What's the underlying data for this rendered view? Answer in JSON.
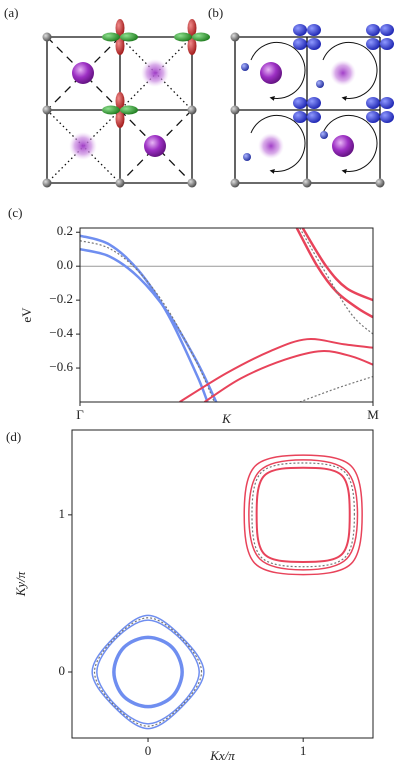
{
  "panels": {
    "a": "(a)",
    "b": "(b)"
  },
  "chart_data": [
    {
      "type": "line",
      "label": "(c)",
      "ylabel": "eV",
      "xlabel": "K",
      "xlim": [
        0,
        2
      ],
      "ylim": [
        -0.8,
        0.225
      ],
      "xticks": [
        {
          "value": 0,
          "label": "Γ"
        },
        {
          "value": 2,
          "label": "M"
        }
      ],
      "yticks": [
        {
          "value": 0.2,
          "label": "0.2"
        },
        {
          "value": 0,
          "label": "0.0"
        },
        {
          "value": -0.2,
          "label": "−0.2"
        },
        {
          "value": -0.4,
          "label": "−0.4"
        },
        {
          "value": -0.6,
          "label": "−0.6"
        }
      ],
      "reference_line": 0,
      "series": [
        {
          "color": "#6f8ef0",
          "line_width": 2.5,
          "x": [
            0,
            0.2,
            0.4,
            0.6,
            0.8,
            0.87
          ],
          "values": [
            0.18,
            0.128,
            -0.026,
            -0.284,
            -0.646,
            -0.8
          ]
        },
        {
          "color": "#6f8ef0",
          "line_width": 2.5,
          "x": [
            0,
            0.2,
            0.4,
            0.6,
            0.8,
            0.93
          ],
          "values": [
            0.1,
            0.058,
            -0.066,
            -0.274,
            -0.566,
            -0.8
          ]
        },
        {
          "color": "#777777",
          "line_width": 1.2,
          "dash": "2 2",
          "x": [
            0,
            0.2,
            0.4,
            0.6,
            0.8,
            0.917
          ],
          "values": [
            0.15,
            0.105,
            -0.031,
            -0.257,
            -0.573,
            -0.8
          ]
        },
        {
          "color": "#e8435a",
          "line_width": 2,
          "x": [
            0.68,
            1.0,
            1.3,
            1.55,
            1.8,
            2.0
          ],
          "values": [
            -0.8,
            -0.63,
            -0.5,
            -0.43,
            -0.46,
            -0.48
          ]
        },
        {
          "color": "#e8435a",
          "line_width": 2,
          "x": [
            0.85,
            1.1,
            1.4,
            1.65,
            1.85,
            2.0
          ],
          "values": [
            -0.8,
            -0.66,
            -0.55,
            -0.5,
            -0.53,
            -0.58
          ]
        },
        {
          "color": "#e8435a",
          "line_width": 2.5,
          "x": [
            1.48,
            1.62,
            1.75,
            1.9,
            2.0
          ],
          "values": [
            0.225,
            0,
            -0.15,
            -0.25,
            -0.3
          ]
        },
        {
          "color": "#e8435a",
          "line_width": 2.5,
          "x": [
            1.52,
            1.68,
            1.82,
            2.0
          ],
          "values": [
            0.225,
            0,
            -0.13,
            -0.2
          ]
        },
        {
          "color": "#777777",
          "line_width": 1.2,
          "dash": "2 2",
          "x": [
            1.5,
            1.65,
            1.85,
            2.0
          ],
          "values": [
            0.225,
            0,
            -0.28,
            -0.4
          ]
        },
        {
          "color": "#777777",
          "line_width": 1.2,
          "dash": "2 2",
          "x": [
            1.5,
            1.75,
            2.0
          ],
          "values": [
            -0.8,
            -0.72,
            -0.65
          ]
        }
      ]
    },
    {
      "type": "contour",
      "label": "(d)",
      "ylabel": "Ky/π",
      "xlabel": "Kx/π",
      "xlim": [
        -0.49,
        1.45
      ],
      "ylim": [
        -0.42,
        1.54
      ],
      "xticks": [
        0,
        1
      ],
      "yticks": [
        0,
        1
      ],
      "series": [
        {
          "color": "#6f8ef0",
          "line_width": 3.5,
          "x": [
            0.22,
            0.156,
            0,
            -0.156,
            -0.22,
            -0.156,
            0,
            0.156
          ],
          "values": [
            0,
            0.156,
            0.22,
            0.156,
            0,
            -0.156,
            -0.22,
            -0.156
          ]
        },
        {
          "color": "#6f8ef0",
          "line_width": 1.5,
          "x": [
            0.36,
            0.22,
            0,
            -0.22,
            -0.36,
            -0.22,
            0,
            0.22
          ],
          "values": [
            0,
            0.22,
            0.36,
            0.22,
            0,
            -0.22,
            -0.36,
            -0.22
          ]
        },
        {
          "color": "#6f8ef0",
          "line_width": 1.5,
          "x": [
            0.33,
            0.21,
            0,
            -0.21,
            -0.33,
            -0.21,
            0,
            0.21
          ],
          "values": [
            0,
            0.21,
            0.33,
            0.21,
            0,
            -0.21,
            -0.33,
            -0.21
          ]
        },
        {
          "color": "#777777",
          "line_width": 1.2,
          "dash": "2 2",
          "x": [
            0.345,
            0.215,
            0,
            -0.215,
            -0.345,
            -0.215,
            0,
            0.215
          ],
          "values": [
            0,
            0.215,
            0.345,
            0.215,
            0,
            -0.215,
            -0.345,
            -0.215
          ]
        },
        {
          "color": "#e8435a",
          "line_width": 1.5,
          "x": [
            1.38,
            1.31,
            1,
            0.69,
            0.62,
            0.69,
            1,
            1.31
          ],
          "values": [
            1,
            1.31,
            1.38,
            1.31,
            1,
            0.69,
            0.62,
            0.69
          ]
        },
        {
          "color": "#e8435a",
          "line_width": 1.5,
          "x": [
            1.35,
            1.28,
            1,
            0.72,
            0.65,
            0.72,
            1,
            1.28
          ],
          "values": [
            1,
            1.28,
            1.35,
            1.28,
            1,
            0.72,
            0.65,
            0.72
          ]
        },
        {
          "color": "#e8435a",
          "line_width": 2,
          "x": [
            1.3,
            1.25,
            1,
            0.75,
            0.7,
            0.75,
            1,
            1.25
          ],
          "values": [
            1,
            1.25,
            1.3,
            1.25,
            1,
            0.75,
            0.7,
            0.75
          ]
        },
        {
          "color": "#777777",
          "line_width": 1.2,
          "dash": "2 2",
          "x": [
            1.33,
            1.27,
            1,
            0.73,
            0.67,
            0.73,
            1,
            1.27
          ],
          "values": [
            1,
            1.27,
            1.33,
            1.27,
            1,
            0.73,
            0.67,
            0.73
          ]
        }
      ]
    }
  ]
}
